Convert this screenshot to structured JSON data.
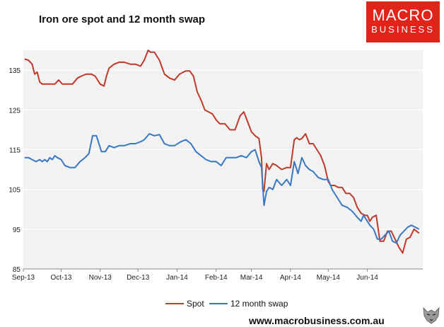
{
  "title": "Iron ore spot and 12 month swap",
  "logo": {
    "line1": "MACRO",
    "line2": "BUSINESS"
  },
  "footer": {
    "url": "www.macrobusiness.com.au"
  },
  "colors": {
    "spot": "#c0392b",
    "swap": "#3a78c3",
    "brand": "#e2231a",
    "plot_bg": "#f2f2f2",
    "grid": "#ffffff"
  },
  "chart_data": {
    "type": "line",
    "title": "Iron ore spot and 12 month swap",
    "xlabel": "",
    "ylabel": "",
    "ylim": [
      85,
      140
    ],
    "yticks": [
      85,
      95,
      105,
      115,
      125,
      135
    ],
    "xlim": [
      "2013-09-01",
      "2014-07-15"
    ],
    "xtick_labels": [
      "Sep-13",
      "Oct-13",
      "Nov-13",
      "Dec-13",
      "Jan-14",
      "Feb-14",
      "Mar-14",
      "Apr-14",
      "May-14",
      "Jun-14"
    ],
    "xtick_dates": [
      "2013-09-01",
      "2013-10-01",
      "2013-11-01",
      "2013-12-01",
      "2014-01-01",
      "2014-02-01",
      "2014-03-01",
      "2014-04-01",
      "2014-05-01",
      "2014-06-01"
    ],
    "grid": true,
    "legend": "bottom",
    "series": [
      {
        "name": "Spot",
        "color": "#c0392b",
        "x": [
          "2013-09-02",
          "2013-09-05",
          "2013-09-08",
          "2013-09-10",
          "2013-09-12",
          "2013-09-14",
          "2013-09-16",
          "2013-09-18",
          "2013-09-22",
          "2013-09-26",
          "2013-09-29",
          "2013-10-02",
          "2013-10-06",
          "2013-10-10",
          "2013-10-14",
          "2013-10-17",
          "2013-10-21",
          "2013-10-25",
          "2013-10-28",
          "2013-11-01",
          "2013-11-04",
          "2013-11-06",
          "2013-11-08",
          "2013-11-12",
          "2013-11-16",
          "2013-11-20",
          "2013-11-25",
          "2013-11-29",
          "2013-12-03",
          "2013-12-06",
          "2013-12-09",
          "2013-12-11",
          "2013-12-14",
          "2013-12-18",
          "2013-12-22",
          "2013-12-26",
          "2013-12-30",
          "2014-01-03",
          "2014-01-06",
          "2014-01-08",
          "2014-01-11",
          "2014-01-14",
          "2014-01-17",
          "2014-01-20",
          "2014-01-23",
          "2014-01-26",
          "2014-01-29",
          "2014-02-01",
          "2014-02-04",
          "2014-02-08",
          "2014-02-12",
          "2014-02-16",
          "2014-02-20",
          "2014-02-23",
          "2014-02-26",
          "2014-03-01",
          "2014-03-04",
          "2014-03-07",
          "2014-03-09",
          "2014-03-10",
          "2014-03-11",
          "2014-03-13",
          "2014-03-15",
          "2014-03-18",
          "2014-03-21",
          "2014-03-25",
          "2014-03-29",
          "2014-04-01",
          "2014-04-04",
          "2014-04-06",
          "2014-04-08",
          "2014-04-10",
          "2014-04-13",
          "2014-04-16",
          "2014-04-19",
          "2014-04-22",
          "2014-04-25",
          "2014-04-28",
          "2014-05-01",
          "2014-05-03",
          "2014-05-06",
          "2014-05-09",
          "2014-05-12",
          "2014-05-15",
          "2014-05-18",
          "2014-05-21",
          "2014-05-24",
          "2014-05-27",
          "2014-05-30",
          "2014-06-01",
          "2014-06-03",
          "2014-06-05",
          "2014-06-08",
          "2014-06-11",
          "2014-06-14",
          "2014-06-17",
          "2014-06-20",
          "2014-06-23",
          "2014-06-26",
          "2014-06-29",
          "2014-07-02",
          "2014-07-05",
          "2014-07-08",
          "2014-07-12"
        ],
        "y": [
          137.8,
          137.5,
          136.5,
          134.0,
          134.5,
          132.0,
          131.5,
          131.5,
          131.5,
          131.5,
          132.5,
          131.5,
          131.5,
          131.5,
          133.0,
          133.5,
          134.0,
          134.0,
          133.5,
          131.5,
          131.0,
          133.5,
          135.5,
          136.5,
          137.0,
          137.0,
          136.5,
          136.5,
          136.0,
          137.5,
          140.0,
          139.5,
          139.5,
          137.5,
          134.0,
          133.0,
          132.5,
          134.0,
          134.5,
          134.8,
          134.8,
          133.5,
          129.5,
          127.5,
          125.0,
          124.5,
          124.0,
          122.5,
          121.5,
          121.5,
          120.0,
          120.0,
          123.5,
          124.5,
          122.0,
          119.5,
          118.5,
          117.8,
          113.0,
          105.0,
          104.5,
          111.5,
          110.0,
          111.5,
          111.0,
          110.0,
          110.5,
          110.5,
          117.5,
          118.0,
          117.5,
          117.8,
          119.0,
          116.5,
          116.5,
          115.0,
          113.5,
          111.0,
          107.0,
          106.0,
          106.0,
          105.5,
          105.5,
          104.0,
          104.0,
          103.0,
          100.5,
          99.0,
          98.5,
          98.5,
          97.0,
          98.0,
          98.5,
          92.0,
          92.0,
          94.5,
          94.5,
          92.5,
          90.5,
          89.0,
          92.5,
          93.0,
          95.0,
          94.0
        ]
      },
      {
        "name": "12 month swap",
        "color": "#3a78c3",
        "x": [
          "2013-09-02",
          "2013-09-05",
          "2013-09-08",
          "2013-09-11",
          "2013-09-14",
          "2013-09-16",
          "2013-09-18",
          "2013-09-20",
          "2013-09-22",
          "2013-09-24",
          "2013-09-26",
          "2013-09-28",
          "2013-10-01",
          "2013-10-04",
          "2013-10-08",
          "2013-10-12",
          "2013-10-16",
          "2013-10-20",
          "2013-10-23",
          "2013-10-26",
          "2013-10-29",
          "2013-11-02",
          "2013-11-05",
          "2013-11-08",
          "2013-11-12",
          "2013-11-16",
          "2013-11-20",
          "2013-11-25",
          "2013-11-29",
          "2013-12-03",
          "2013-12-06",
          "2013-12-10",
          "2013-12-14",
          "2013-12-18",
          "2013-12-22",
          "2013-12-26",
          "2013-12-30",
          "2014-01-04",
          "2014-01-08",
          "2014-01-12",
          "2014-01-16",
          "2014-01-20",
          "2014-01-24",
          "2014-01-28",
          "2014-02-01",
          "2014-02-05",
          "2014-02-09",
          "2014-02-13",
          "2014-02-17",
          "2014-02-21",
          "2014-02-25",
          "2014-03-01",
          "2014-03-04",
          "2014-03-07",
          "2014-03-09",
          "2014-03-10",
          "2014-03-11",
          "2014-03-13",
          "2014-03-15",
          "2014-03-18",
          "2014-03-21",
          "2014-03-25",
          "2014-03-29",
          "2014-04-01",
          "2014-04-04",
          "2014-04-07",
          "2014-04-10",
          "2014-04-13",
          "2014-04-16",
          "2014-04-19",
          "2014-04-23",
          "2014-04-27",
          "2014-05-01",
          "2014-05-04",
          "2014-05-08",
          "2014-05-12",
          "2014-05-16",
          "2014-05-20",
          "2014-05-24",
          "2014-05-27",
          "2014-05-29",
          "2014-06-01",
          "2014-06-03",
          "2014-06-06",
          "2014-06-09",
          "2014-06-12",
          "2014-06-15",
          "2014-06-18",
          "2014-06-21",
          "2014-06-24",
          "2014-06-27",
          "2014-06-30",
          "2014-07-03",
          "2014-07-06",
          "2014-07-09",
          "2014-07-12"
        ],
        "y": [
          113.0,
          113.0,
          112.5,
          112.0,
          112.5,
          112.0,
          112.5,
          112.0,
          113.0,
          112.5,
          113.5,
          113.0,
          112.5,
          111.0,
          110.5,
          110.5,
          112.0,
          113.0,
          114.0,
          118.5,
          118.5,
          114.5,
          114.5,
          116.0,
          115.5,
          116.0,
          116.0,
          116.5,
          116.5,
          117.0,
          117.5,
          119.0,
          118.5,
          118.8,
          116.5,
          116.0,
          116.0,
          117.0,
          117.5,
          116.5,
          114.5,
          113.5,
          112.5,
          112.0,
          112.0,
          111.0,
          113.0,
          113.0,
          113.0,
          113.5,
          113.0,
          114.5,
          115.0,
          112.0,
          110.5,
          106.0,
          101.0,
          104.5,
          105.5,
          105.0,
          107.5,
          106.0,
          107.5,
          106.0,
          112.0,
          109.0,
          113.0,
          111.0,
          110.0,
          109.5,
          108.0,
          107.5,
          107.5,
          105.0,
          103.0,
          101.0,
          100.5,
          99.5,
          98.0,
          97.0,
          98.5,
          97.0,
          96.0,
          95.0,
          92.5,
          92.5,
          93.5,
          94.5,
          92.0,
          91.5,
          93.5,
          94.5,
          95.5,
          96.0,
          95.5,
          95.0
        ]
      }
    ]
  }
}
